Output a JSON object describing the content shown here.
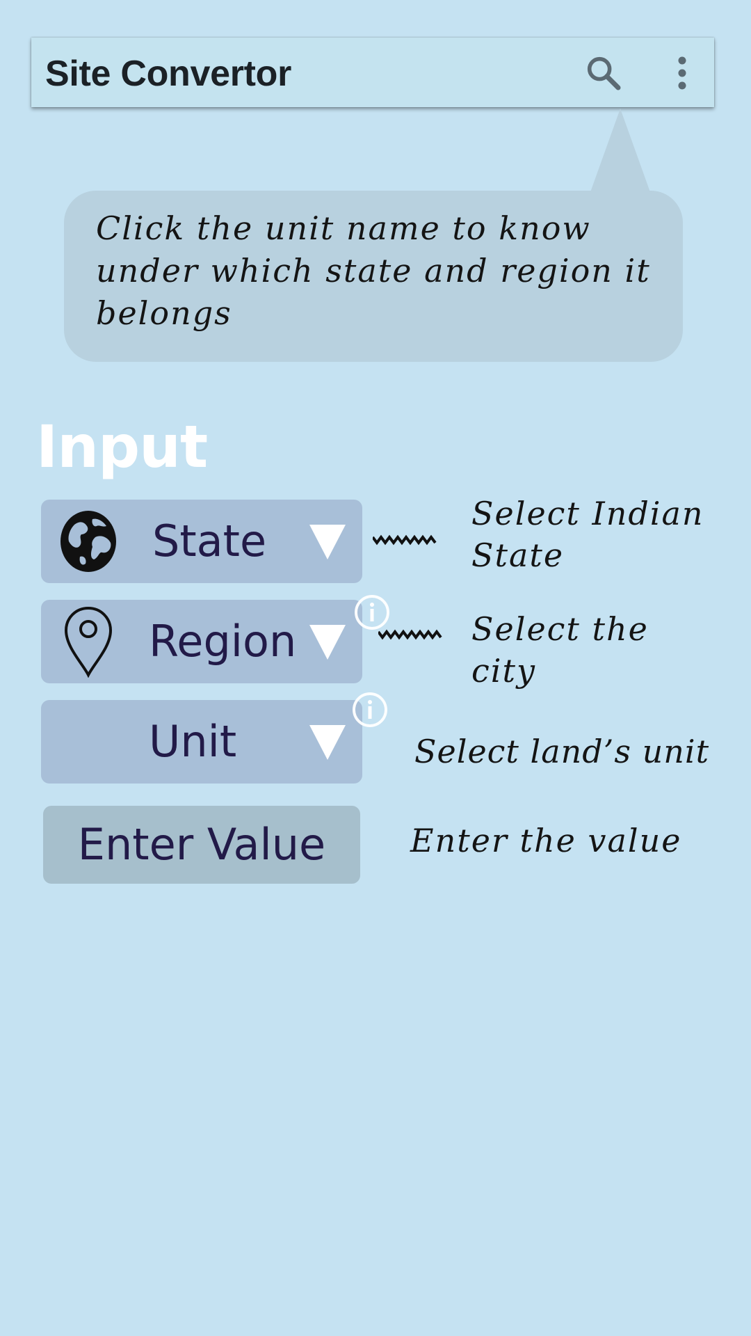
{
  "app_bar": {
    "title": "Site Convertor",
    "actions": [
      {
        "icon": "search-icon"
      },
      {
        "icon": "more-vert-icon"
      }
    ]
  },
  "hint_bubble": {
    "text": "Click the unit name to know under which state and region it belongs"
  },
  "input_section": {
    "title": "Input",
    "fields": [
      {
        "id": "state",
        "label": "State",
        "icon": "globe-icon",
        "note": "Select Indian\nState"
      },
      {
        "id": "region",
        "label": "Region",
        "icon": "map-pin-icon",
        "note": "Select the\ncity"
      },
      {
        "id": "unit",
        "label": "Unit",
        "icon": null,
        "note": "Select land’s unit"
      }
    ],
    "value_button": {
      "label": "Enter Value",
      "note": "Enter the value"
    }
  },
  "colors": {
    "background": "#c5e2f2",
    "app_bar": "#c4e3ef",
    "bubble": "#b8d1df",
    "field": "#a8bfd8",
    "value_button": "#a6bfcc",
    "field_text": "#221a48",
    "section_title": "#ffffff"
  }
}
